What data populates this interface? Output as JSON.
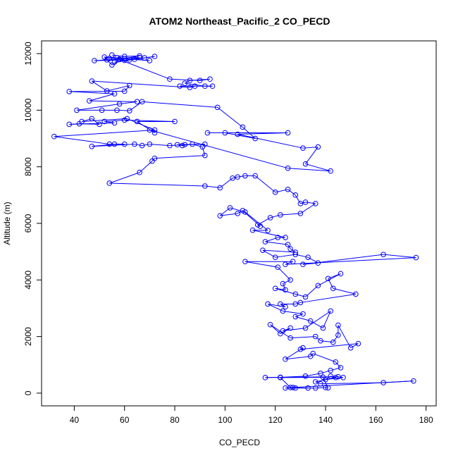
{
  "chart_data": {
    "type": "scatter",
    "title": "ATOM2 Northeast_Pacific_2 CO_PECD",
    "xlabel": "CO_PECD",
    "ylabel": "Altitude (m)",
    "xlim": [
      27,
      184
    ],
    "ylim": [
      -450,
      12450
    ],
    "x_ticks": [
      40,
      60,
      80,
      100,
      120,
      140,
      160,
      180
    ],
    "y_ticks": [
      0,
      2000,
      4000,
      6000,
      8000,
      10000,
      12000
    ],
    "grid": false,
    "legend": "none",
    "series": [
      {
        "style": "line+points",
        "color": "#0000ff",
        "points": [
          [
            55,
            11950
          ],
          [
            60,
            11900
          ],
          [
            66,
            11920
          ],
          [
            58,
            11800
          ],
          [
            53,
            11780
          ],
          [
            48,
            11750
          ],
          [
            62,
            11780
          ],
          [
            68,
            11850
          ],
          [
            72,
            11900
          ],
          [
            56,
            11700
          ],
          [
            64,
            11800
          ],
          [
            70,
            11750
          ],
          [
            57,
            11850
          ],
          [
            52,
            11880
          ],
          [
            55,
            11600
          ],
          [
            60,
            11820
          ],
          [
            54,
            11830
          ],
          [
            66,
            11860
          ],
          [
            60,
            11760
          ],
          [
            58,
            11790
          ],
          [
            78,
            11100
          ],
          [
            90,
            11050
          ],
          [
            94,
            11100
          ],
          [
            86,
            11050
          ],
          [
            84,
            10950
          ],
          [
            92,
            10850
          ],
          [
            95,
            10850
          ],
          [
            82,
            10850
          ],
          [
            88,
            10850
          ],
          [
            86,
            10800
          ],
          [
            47,
            11030
          ],
          [
            53,
            10680
          ],
          [
            62,
            10870
          ],
          [
            60,
            10670
          ],
          [
            38,
            10660
          ],
          [
            56,
            10580
          ],
          [
            46,
            10330
          ],
          [
            65,
            10300
          ],
          [
            58,
            10220
          ],
          [
            41,
            10000
          ],
          [
            51,
            10000
          ],
          [
            57,
            10000
          ],
          [
            62,
            9980
          ],
          [
            67,
            10300
          ],
          [
            97,
            10100
          ],
          [
            107,
            9400
          ],
          [
            112,
            9000
          ],
          [
            100,
            9200
          ],
          [
            93,
            9200
          ],
          [
            125,
            9200
          ],
          [
            105,
            9150
          ],
          [
            131,
            8660
          ],
          [
            137,
            8700
          ],
          [
            132,
            8100
          ],
          [
            142,
            7850
          ],
          [
            125,
            7950
          ],
          [
            70,
            9300
          ],
          [
            72,
            9200
          ],
          [
            65,
            9600
          ],
          [
            80,
            9600
          ],
          [
            60,
            9650
          ],
          [
            52,
            9600
          ],
          [
            56,
            9550
          ],
          [
            38,
            9500
          ],
          [
            42,
            9520
          ],
          [
            50,
            9500
          ],
          [
            47,
            9700
          ],
          [
            43,
            9600
          ],
          [
            61,
            9700
          ],
          [
            72,
            9300
          ],
          [
            32,
            9070
          ],
          [
            54,
            8800
          ],
          [
            60,
            8800
          ],
          [
            56,
            8800
          ],
          [
            47,
            8720
          ],
          [
            64,
            8800
          ],
          [
            67,
            8750
          ],
          [
            70,
            8800
          ],
          [
            78,
            8750
          ],
          [
            84,
            8780
          ],
          [
            92,
            8800
          ],
          [
            81,
            8780
          ],
          [
            83,
            8750
          ],
          [
            87,
            8800
          ],
          [
            91,
            8700
          ],
          [
            92,
            8400
          ],
          [
            72,
            8300
          ],
          [
            71,
            8200
          ],
          [
            66,
            7800
          ],
          [
            54,
            7420
          ],
          [
            92,
            7320
          ],
          [
            98,
            7260
          ],
          [
            103,
            7600
          ],
          [
            105,
            7640
          ],
          [
            108,
            7680
          ],
          [
            112,
            7680
          ],
          [
            120,
            7100
          ],
          [
            125,
            7200
          ],
          [
            128,
            7000
          ],
          [
            130,
            6700
          ],
          [
            132,
            6750
          ],
          [
            136,
            6700
          ],
          [
            130,
            6350
          ],
          [
            122,
            6300
          ],
          [
            118,
            6200
          ],
          [
            113,
            5950
          ],
          [
            114,
            5900
          ],
          [
            107,
            6450
          ],
          [
            105,
            6350
          ],
          [
            98,
            6270
          ],
          [
            102,
            6550
          ],
          [
            108,
            6400
          ],
          [
            117,
            5750
          ],
          [
            111,
            5760
          ],
          [
            124,
            5500
          ],
          [
            121,
            5500
          ],
          [
            116,
            5350
          ],
          [
            125,
            5250
          ],
          [
            126,
            5100
          ],
          [
            128,
            4980
          ],
          [
            115,
            5050
          ],
          [
            120,
            4800
          ],
          [
            128,
            4900
          ],
          [
            133,
            4800
          ],
          [
            137,
            4600
          ],
          [
            131,
            4550
          ],
          [
            163,
            4900
          ],
          [
            176,
            4790
          ],
          [
            124,
            4550
          ],
          [
            127,
            4650
          ],
          [
            108,
            4650
          ],
          [
            121,
            4450
          ],
          [
            126,
            4000
          ],
          [
            123,
            3870
          ],
          [
            124,
            3650
          ],
          [
            120,
            3700
          ],
          [
            128,
            3500
          ],
          [
            132,
            3400
          ],
          [
            137,
            3800
          ],
          [
            146,
            4220
          ],
          [
            141,
            4050
          ],
          [
            143,
            3700
          ],
          [
            152,
            3500
          ],
          [
            130,
            3200
          ],
          [
            128,
            3150
          ],
          [
            122,
            3150
          ],
          [
            124,
            3050
          ],
          [
            117,
            3150
          ],
          [
            123,
            2900
          ],
          [
            131,
            2800
          ],
          [
            128,
            2700
          ],
          [
            134,
            2550
          ],
          [
            139,
            2300
          ],
          [
            142,
            2900
          ],
          [
            132,
            2300
          ],
          [
            123,
            2200
          ],
          [
            126,
            2300
          ],
          [
            122,
            2100
          ],
          [
            118,
            2420
          ],
          [
            126,
            1950
          ],
          [
            136,
            2000
          ],
          [
            138,
            1850
          ],
          [
            143,
            1800
          ],
          [
            145,
            2050
          ],
          [
            145,
            2400
          ],
          [
            150,
            1600
          ],
          [
            153,
            1750
          ],
          [
            130,
            1550
          ],
          [
            131,
            1600
          ],
          [
            124,
            1200
          ],
          [
            134,
            1300
          ],
          [
            135,
            1400
          ],
          [
            144,
            1100
          ],
          [
            146,
            900
          ],
          [
            142,
            800
          ],
          [
            138,
            700
          ],
          [
            132,
            600
          ],
          [
            122,
            560
          ],
          [
            116,
            550
          ],
          [
            145,
            580
          ],
          [
            147,
            550
          ],
          [
            140,
            480
          ],
          [
            142,
            600
          ],
          [
            144,
            550
          ],
          [
            136,
            400
          ],
          [
            138,
            330
          ],
          [
            163,
            370
          ],
          [
            175,
            430
          ],
          [
            127,
            200
          ],
          [
            124,
            180
          ],
          [
            128,
            180
          ],
          [
            136,
            180
          ],
          [
            140,
            200
          ],
          [
            141,
            190
          ],
          [
            139,
            560
          ],
          [
            122,
            550
          ],
          [
            126,
            200
          ],
          [
            133,
            180
          ]
        ]
      }
    ]
  }
}
